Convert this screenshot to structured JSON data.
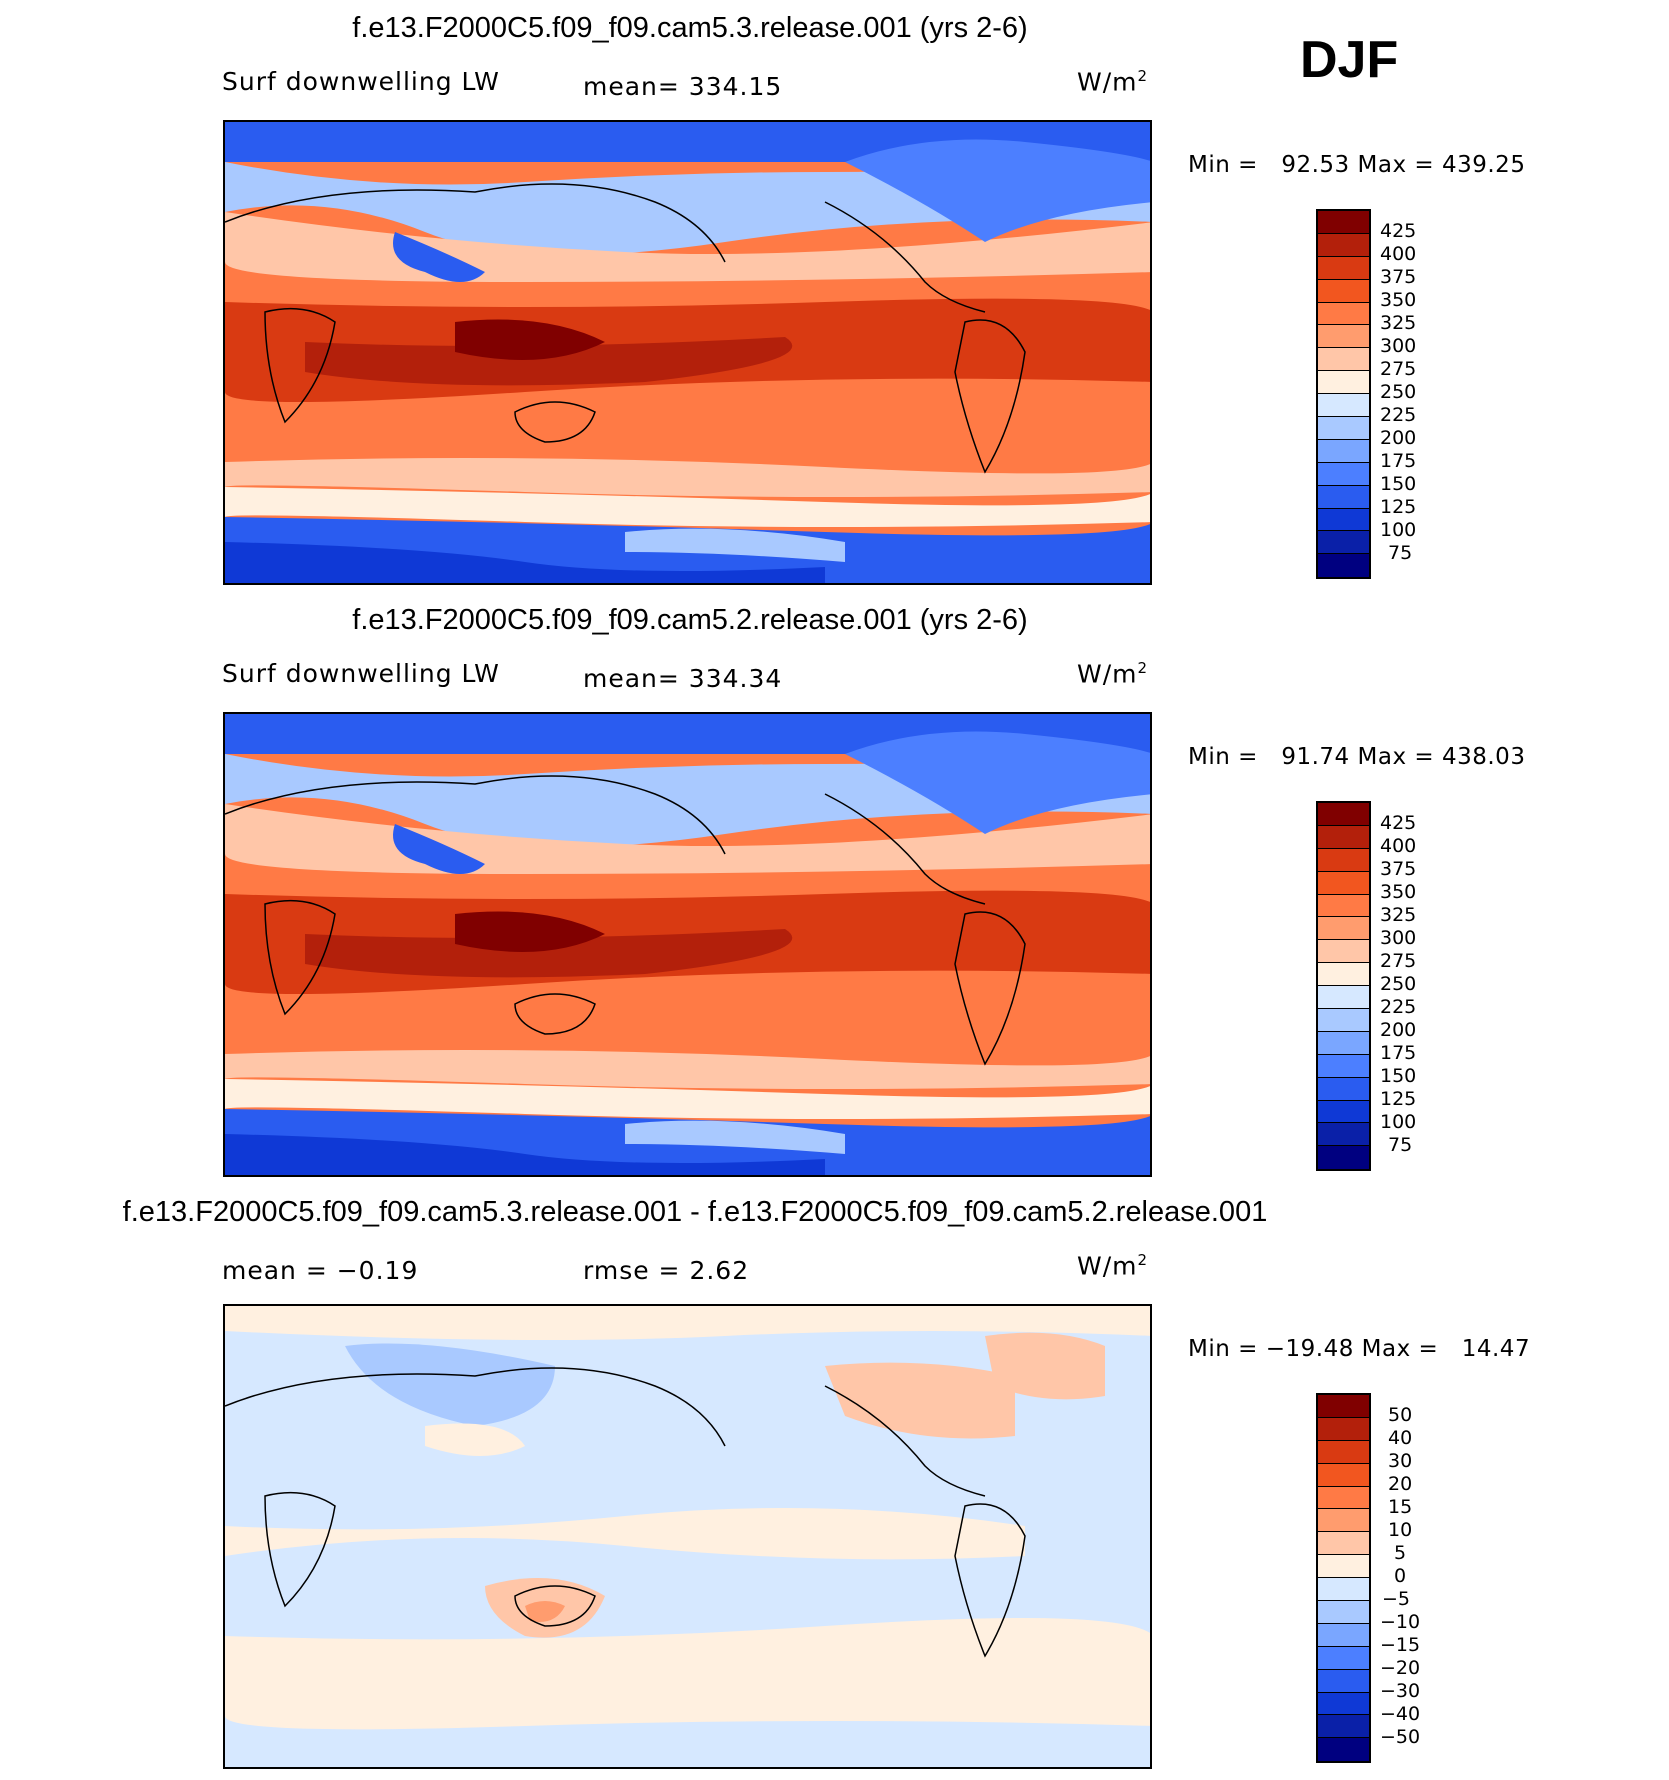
{
  "season": "DJF",
  "panels": [
    {
      "title": "f.e13.F2000C5.f09_f09.cam5.3.release.001 (yrs 2-6)",
      "variable": "Surf downwelling LW",
      "stat1": "mean= 334.15",
      "stat2": "",
      "units": "W/m",
      "units_sup": "2",
      "min_label": "Min =",
      "min_value": "92.53",
      "max_label": "Max =",
      "max_value": "439.25",
      "colorbar": [
        "425",
        "400",
        "375",
        "350",
        "325",
        "300",
        "275",
        "250",
        "225",
        "200",
        "175",
        "150",
        "125",
        "100",
        "75"
      ]
    },
    {
      "title": "f.e13.F2000C5.f09_f09.cam5.2.release.001 (yrs 2-6)",
      "variable": "Surf downwelling LW",
      "stat1": "mean= 334.34",
      "stat2": "",
      "units": "W/m",
      "units_sup": "2",
      "min_label": "Min =",
      "min_value": "91.74",
      "max_label": "Max =",
      "max_value": "438.03",
      "colorbar": [
        "425",
        "400",
        "375",
        "350",
        "325",
        "300",
        "275",
        "250",
        "225",
        "200",
        "175",
        "150",
        "125",
        "100",
        "75"
      ]
    },
    {
      "title": "f.e13.F2000C5.f09_f09.cam5.3.release.001 - f.e13.F2000C5.f09_f09.cam5.2.release.001",
      "variable": "",
      "stat1": "mean =   −0.19",
      "stat2": "rmse =    2.62",
      "units": "W/m",
      "units_sup": "2",
      "min_label": "Min =",
      "min_value": "−19.48",
      "max_label": "Max =",
      "max_value": "14.47",
      "colorbar": [
        "50",
        "40",
        "30",
        "20",
        "15",
        "10",
        "5",
        "0",
        "−5",
        "−10",
        "−15",
        "−20",
        "−30",
        "−40",
        "−50"
      ]
    }
  ],
  "colors": {
    "scale": [
      "#800000",
      "#b3200b",
      "#d93a12",
      "#f2561f",
      "#ff7a45",
      "#ff9c6e",
      "#ffc6a8",
      "#fff0e0",
      "#d6e8ff",
      "#a9c9ff",
      "#7aa6ff",
      "#4c7fff",
      "#2a5cf0",
      "#0f39d6",
      "#0a20a8",
      "#000080"
    ]
  }
}
